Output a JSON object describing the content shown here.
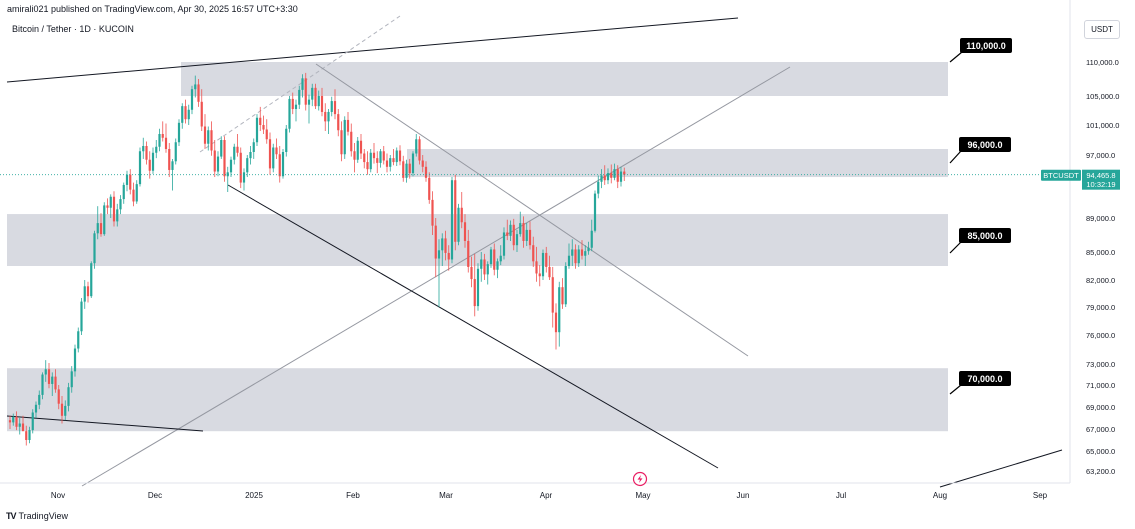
{
  "header": {
    "published": "amirali021 published on TradingView.com, Apr 30, 2025 16:57 UTC+3:30",
    "symbol_line": "Bitcoin / Tether · 1D · KUCOIN",
    "currency": "USDT"
  },
  "footer": {
    "brand": "TradingView",
    "logo": "TV"
  },
  "icons": {
    "alert": "lightning-icon"
  },
  "colors": {
    "up": "#26a69a",
    "down": "#ef5350",
    "zone": "#d1d4dc",
    "price_badge": "#26a69a",
    "label_bg": "#000000"
  },
  "chart_data": {
    "type": "candlestick",
    "title": "",
    "xlabel": "",
    "ylabel": "",
    "ylim": [
      63200,
      116500
    ],
    "price_axis": [
      "110,000.0",
      "105,000.0",
      "101,000.0",
      "97,000.0",
      "89,000.0",
      "85,000.0",
      "82,000.0",
      "79,000.0",
      "76,000.0",
      "73,000.0",
      "71,000.0",
      "69,000.0",
      "67,000.0",
      "65,000.0",
      "63,200.0"
    ],
    "time_axis": [
      "Nov",
      "Dec",
      "2025",
      "Feb",
      "Mar",
      "Apr",
      "May",
      "Jun",
      "Jul",
      "Aug",
      "Sep"
    ],
    "last_price": {
      "symbol": "BTCUSDT",
      "price": "94,465.8",
      "countdown": "10:32:19"
    },
    "zones": [
      {
        "label": "110,000.0",
        "top": 110000,
        "bottom": 105000
      },
      {
        "label": "96,000.0",
        "top": 97800,
        "bottom": 94200
      },
      {
        "label": "85,000.0",
        "top": 89500,
        "bottom": 83500
      },
      {
        "label": "70,000.0",
        "top": 72600,
        "bottom": 66800
      }
    ],
    "candles_note": "Daily BTCUSDT candles approx. Oct 15 2024 – Apr 30 2025 (rising to ~108k in Jan, falling to ~76k in Apr, recovering to ~94.5k)",
    "candles": [
      [
        67800,
        68200,
        67000,
        67600
      ],
      [
        67600,
        68400,
        67300,
        68100
      ],
      [
        68100,
        68600,
        66900,
        67200
      ],
      [
        67200,
        68000,
        66500,
        67500
      ],
      [
        67500,
        68200,
        67000,
        66800
      ],
      [
        66800,
        67300,
        65500,
        66000
      ],
      [
        66000,
        67200,
        65700,
        66900
      ],
      [
        66900,
        68800,
        66600,
        68500
      ],
      [
        68500,
        69500,
        68000,
        69200
      ],
      [
        69200,
        70500,
        68800,
        70100
      ],
      [
        70100,
        72200,
        69700,
        72000
      ],
      [
        72000,
        73400,
        71300,
        72500
      ],
      [
        72500,
        73100,
        70700,
        71100
      ],
      [
        71100,
        72200,
        70000,
        71800
      ],
      [
        71800,
        72500,
        70300,
        70600
      ],
      [
        70600,
        71000,
        68800,
        69300
      ],
      [
        69300,
        70000,
        67500,
        68200
      ],
      [
        68200,
        69600,
        67800,
        69100
      ],
      [
        69100,
        71200,
        68600,
        70800
      ],
      [
        70800,
        72800,
        70300,
        72300
      ],
      [
        72300,
        75000,
        71800,
        74600
      ],
      [
        74600,
        76800,
        74200,
        76400
      ],
      [
        76400,
        80000,
        76000,
        79600
      ],
      [
        79600,
        82000,
        78800,
        81300
      ],
      [
        81300,
        81800,
        79500,
        80200
      ],
      [
        80200,
        84000,
        80000,
        83800
      ],
      [
        83800,
        87500,
        83200,
        87200
      ],
      [
        87200,
        90500,
        86500,
        88400
      ],
      [
        88400,
        89600,
        86800,
        87100
      ],
      [
        87100,
        91000,
        86900,
        90600
      ],
      [
        90600,
        91500,
        89500,
        90300
      ],
      [
        90300,
        92000,
        89000,
        91700
      ],
      [
        91700,
        92400,
        88000,
        88600
      ],
      [
        88600,
        90800,
        88000,
        90100
      ],
      [
        90100,
        91900,
        89500,
        91400
      ],
      [
        91400,
        93500,
        90800,
        93200
      ],
      [
        93200,
        95000,
        92400,
        94500
      ],
      [
        94500,
        95200,
        92000,
        92600
      ],
      [
        92600,
        93500,
        90500,
        91100
      ],
      [
        91100,
        93800,
        90800,
        93300
      ],
      [
        93300,
        98000,
        93000,
        97500
      ],
      [
        97500,
        99300,
        96500,
        98200
      ],
      [
        98200,
        98800,
        95800,
        96400
      ],
      [
        96400,
        97500,
        94000,
        95000
      ],
      [
        95000,
        98000,
        94600,
        97300
      ],
      [
        97300,
        99000,
        96600,
        98100
      ],
      [
        98100,
        100500,
        97500,
        99800
      ],
      [
        99800,
        101500,
        98800,
        99300
      ],
      [
        99300,
        101200,
        97300,
        97800
      ],
      [
        97800,
        98600,
        94200,
        95100
      ],
      [
        95100,
        96500,
        92500,
        96200
      ],
      [
        96200,
        99200,
        95800,
        98700
      ],
      [
        98700,
        101800,
        98200,
        101300
      ],
      [
        101300,
        104000,
        100500,
        103600
      ],
      [
        103600,
        104500,
        101200,
        101800
      ],
      [
        101800,
        103800,
        101000,
        103100
      ],
      [
        103100,
        106500,
        102500,
        106000
      ],
      [
        106000,
        108000,
        104800,
        106700
      ],
      [
        106700,
        107500,
        103500,
        104200
      ],
      [
        104200,
        106000,
        100200,
        100800
      ],
      [
        100800,
        102500,
        97800,
        98500
      ],
      [
        98500,
        100800,
        97600,
        100300
      ],
      [
        100300,
        101500,
        96900,
        97600
      ],
      [
        97600,
        99000,
        94200,
        94900
      ],
      [
        94900,
        97500,
        94300,
        96800
      ],
      [
        96800,
        99500,
        96500,
        99000
      ],
      [
        99000,
        99500,
        93600,
        94300
      ],
      [
        94300,
        95500,
        92300,
        94800
      ],
      [
        94800,
        96800,
        94200,
        96400
      ],
      [
        96400,
        98500,
        95800,
        98100
      ],
      [
        98100,
        99800,
        96800,
        97300
      ],
      [
        97300,
        98000,
        92800,
        93500
      ],
      [
        93500,
        95300,
        92500,
        94800
      ],
      [
        94800,
        97000,
        94200,
        96600
      ],
      [
        96600,
        98200,
        95800,
        97400
      ],
      [
        97400,
        99200,
        96500,
        98700
      ],
      [
        98700,
        102500,
        98200,
        102000
      ],
      [
        102000,
        103500,
        100200,
        101000
      ],
      [
        101000,
        102300,
        99800,
        100400
      ],
      [
        100400,
        101800,
        98500,
        99100
      ],
      [
        99100,
        100000,
        94500,
        95300
      ],
      [
        95300,
        98500,
        94800,
        98000
      ],
      [
        98000,
        99200,
        96500,
        97100
      ],
      [
        97100,
        98200,
        93500,
        94300
      ],
      [
        94300,
        97800,
        94000,
        97400
      ],
      [
        97400,
        101000,
        96800,
        100500
      ],
      [
        100500,
        105000,
        100000,
        104600
      ],
      [
        104600,
        105500,
        102500,
        103200
      ],
      [
        103200,
        104500,
        101500,
        103800
      ],
      [
        103800,
        106500,
        103200,
        105900
      ],
      [
        105900,
        108200,
        104800,
        107600
      ],
      [
        107600,
        108400,
        103000,
        103800
      ],
      [
        103800,
        105200,
        101200,
        104500
      ],
      [
        104500,
        106800,
        103600,
        106200
      ],
      [
        106200,
        106800,
        103200,
        103600
      ],
      [
        103600,
        105800,
        103000,
        105000
      ],
      [
        105000,
        106200,
        102200,
        102800
      ],
      [
        102800,
        104000,
        100200,
        101500
      ],
      [
        101500,
        103200,
        99800,
        102800
      ],
      [
        102800,
        104900,
        102200,
        104300
      ],
      [
        104300,
        106000,
        101800,
        102500
      ],
      [
        102500,
        103200,
        99500,
        100300
      ],
      [
        100300,
        101500,
        96200,
        97100
      ],
      [
        97100,
        102200,
        96500,
        101700
      ],
      [
        101700,
        102800,
        99600,
        100100
      ],
      [
        100100,
        101200,
        96800,
        97500
      ],
      [
        97500,
        98600,
        94800,
        96400
      ],
      [
        96400,
        99400,
        96000,
        98900
      ],
      [
        98900,
        99800,
        96500,
        97200
      ],
      [
        97200,
        97800,
        95300,
        96100
      ],
      [
        96100,
        97500,
        94500,
        95200
      ],
      [
        95200,
        97800,
        94800,
        97300
      ],
      [
        97300,
        98600,
        95900,
        96600
      ],
      [
        96600,
        97500,
        94700,
        96000
      ],
      [
        96000,
        97800,
        95400,
        97500
      ],
      [
        97500,
        98200,
        95800,
        96300
      ],
      [
        96300,
        97200,
        94800,
        95500
      ],
      [
        95500,
        97000,
        94900,
        96600
      ],
      [
        96600,
        97800,
        95700,
        96100
      ],
      [
        96100,
        98000,
        95600,
        97600
      ],
      [
        97600,
        98300,
        95700,
        96200
      ],
      [
        96200,
        96900,
        93600,
        94100
      ],
      [
        94100,
        96400,
        93500,
        95900
      ],
      [
        95900,
        96500,
        94000,
        94700
      ],
      [
        94700,
        97500,
        94300,
        97200
      ],
      [
        97200,
        99800,
        96800,
        99100
      ],
      [
        99100,
        99500,
        95800,
        96300
      ],
      [
        96300,
        97000,
        94800,
        95500
      ],
      [
        95500,
        96200,
        93600,
        94100
      ],
      [
        94100,
        94800,
        90800,
        91300
      ],
      [
        91300,
        92400,
        87000,
        88100
      ],
      [
        88100,
        89000,
        82300,
        84300
      ],
      [
        84300,
        86500,
        79000,
        85200
      ],
      [
        85200,
        87200,
        83500,
        86600
      ],
      [
        86600,
        87500,
        84100,
        84900
      ],
      [
        84900,
        85800,
        83000,
        84200
      ],
      [
        84200,
        94200,
        83800,
        93800
      ],
      [
        93800,
        94500,
        85200,
        86200
      ],
      [
        86200,
        90800,
        85800,
        90300
      ],
      [
        90300,
        92300,
        87800,
        88500
      ],
      [
        88500,
        89500,
        85500,
        86300
      ],
      [
        86300,
        87600,
        82800,
        83400
      ],
      [
        83400,
        84500,
        81200,
        82100
      ],
      [
        82100,
        84800,
        78000,
        79100
      ],
      [
        79100,
        83800,
        78600,
        83200
      ],
      [
        83200,
        85000,
        81800,
        84200
      ],
      [
        84200,
        84800,
        82000,
        82600
      ],
      [
        82600,
        84000,
        81500,
        83700
      ],
      [
        83700,
        85600,
        83300,
        85300
      ],
      [
        85300,
        86000,
        82500,
        83100
      ],
      [
        83100,
        84300,
        82200,
        84000
      ],
      [
        84000,
        85800,
        83600,
        84600
      ],
      [
        84600,
        87900,
        84200,
        87300
      ],
      [
        87300,
        88800,
        86400,
        86900
      ],
      [
        86900,
        88700,
        86300,
        88200
      ],
      [
        88200,
        88900,
        85200,
        85800
      ],
      [
        85800,
        87600,
        85000,
        87100
      ],
      [
        87100,
        89800,
        86800,
        88400
      ],
      [
        88400,
        89200,
        85500,
        86300
      ],
      [
        86300,
        88400,
        85700,
        87600
      ],
      [
        87600,
        88600,
        85300,
        85800
      ],
      [
        85800,
        86800,
        83400,
        84000
      ],
      [
        84000,
        85600,
        81800,
        82700
      ],
      [
        82700,
        83600,
        81300,
        82400
      ],
      [
        82400,
        85300,
        82000,
        84900
      ],
      [
        84900,
        85600,
        82800,
        83400
      ],
      [
        83400,
        84600,
        82000,
        82300
      ],
      [
        82300,
        83400,
        76800,
        78400
      ],
      [
        78400,
        79400,
        74500,
        76300
      ],
      [
        76300,
        81800,
        74800,
        81200
      ],
      [
        81200,
        82200,
        78800,
        79300
      ],
      [
        79300,
        83900,
        79000,
        83500
      ],
      [
        83500,
        86000,
        83200,
        84600
      ],
      [
        84600,
        86500,
        83500,
        85300
      ],
      [
        85300,
        85900,
        83200,
        83800
      ],
      [
        83800,
        85800,
        83400,
        85300
      ],
      [
        85300,
        86400,
        84200,
        84600
      ],
      [
        84600,
        85800,
        83500,
        85100
      ],
      [
        85100,
        86200,
        84700,
        85500
      ],
      [
        85500,
        88800,
        85100,
        87500
      ],
      [
        87500,
        92500,
        87300,
        92100
      ],
      [
        92100,
        94400,
        91500,
        93600
      ],
      [
        93600,
        95200,
        92800,
        94400
      ],
      [
        94400,
        95700,
        93200,
        93800
      ],
      [
        93800,
        95300,
        93300,
        94700
      ],
      [
        94700,
        95800,
        93400,
        94100
      ],
      [
        94100,
        95900,
        93800,
        95200
      ],
      [
        95200,
        95700,
        92800,
        93600
      ],
      [
        93600,
        95500,
        93000,
        94900
      ],
      [
        94900,
        95400,
        93700,
        94500
      ]
    ]
  }
}
